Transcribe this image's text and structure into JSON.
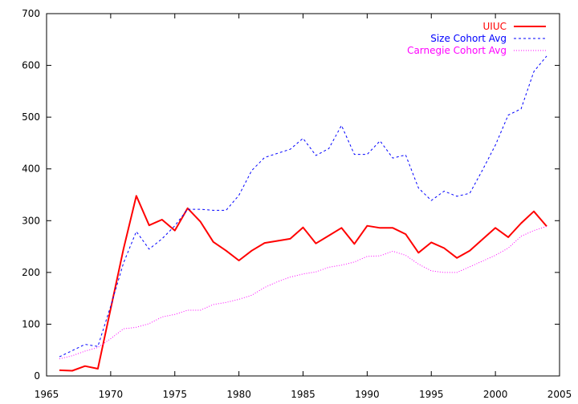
{
  "chart_data": {
    "type": "line",
    "title": "",
    "xlabel": "",
    "ylabel": "",
    "xlim": [
      1965,
      2005
    ],
    "ylim": [
      0,
      700
    ],
    "xticks": [
      1965,
      1970,
      1975,
      1980,
      1985,
      1990,
      1995,
      2000,
      2005
    ],
    "yticks": [
      0,
      100,
      200,
      300,
      400,
      500,
      600,
      700
    ],
    "grid": false,
    "legend_position": "top-right",
    "series": [
      {
        "name": "UIUC",
        "color": "#ff0000",
        "style": "solid",
        "x": [
          1966,
          1967,
          1968,
          1969,
          1970,
          1971,
          1972,
          1973,
          1974,
          1975,
          1976,
          1977,
          1978,
          1979,
          1980,
          1981,
          1982,
          1983,
          1984,
          1985,
          1986,
          1987,
          1988,
          1989,
          1990,
          1991,
          1992,
          1993,
          1994,
          1995,
          1996,
          1997,
          1998,
          1999,
          2000,
          2001,
          2002,
          2003,
          2004
        ],
        "y": [
          11,
          10,
          19,
          14,
          130,
          245,
          348,
          291,
          302,
          281,
          324,
          298,
          259,
          242,
          223,
          242,
          257,
          261,
          265,
          287,
          256,
          271,
          286,
          255,
          290,
          286,
          286,
          274,
          238,
          258,
          247,
          228,
          242,
          264,
          286,
          268,
          295,
          318,
          289
        ]
      },
      {
        "name": "Size Cohort Avg",
        "color": "#0000ff",
        "style": "dashed",
        "x": [
          1966,
          1967,
          1968,
          1969,
          1970,
          1971,
          1972,
          1973,
          1974,
          1975,
          1976,
          1977,
          1978,
          1979,
          1980,
          1981,
          1982,
          1983,
          1984,
          1985,
          1986,
          1987,
          1988,
          1989,
          1990,
          1991,
          1992,
          1993,
          1994,
          1995,
          1996,
          1997,
          1998,
          1999,
          2000,
          2001,
          2002,
          2003,
          2004
        ],
        "y": [
          37,
          49,
          61,
          57,
          135,
          218,
          279,
          245,
          265,
          290,
          322,
          322,
          320,
          320,
          349,
          397,
          422,
          430,
          438,
          459,
          426,
          439,
          484,
          428,
          428,
          454,
          421,
          427,
          363,
          339,
          357,
          347,
          353,
          398,
          446,
          504,
          516,
          588,
          618
        ]
      },
      {
        "name": "Carnegie Cohort Avg",
        "color": "#ff00ff",
        "style": "dotted",
        "x": [
          1966,
          1967,
          1968,
          1969,
          1970,
          1971,
          1972,
          1973,
          1974,
          1975,
          1976,
          1977,
          1978,
          1979,
          1980,
          1981,
          1982,
          1983,
          1984,
          1985,
          1986,
          1987,
          1988,
          1989,
          1990,
          1991,
          1992,
          1993,
          1994,
          1995,
          1996,
          1997,
          1998,
          1999,
          2000,
          2001,
          2002,
          2003,
          2004
        ],
        "y": [
          33,
          39,
          48,
          55,
          72,
          91,
          94,
          101,
          114,
          119,
          127,
          127,
          138,
          142,
          148,
          156,
          171,
          182,
          191,
          197,
          201,
          210,
          214,
          220,
          231,
          232,
          241,
          233,
          216,
          203,
          200,
          200,
          211,
          222,
          233,
          247,
          270,
          281,
          289
        ]
      }
    ]
  }
}
